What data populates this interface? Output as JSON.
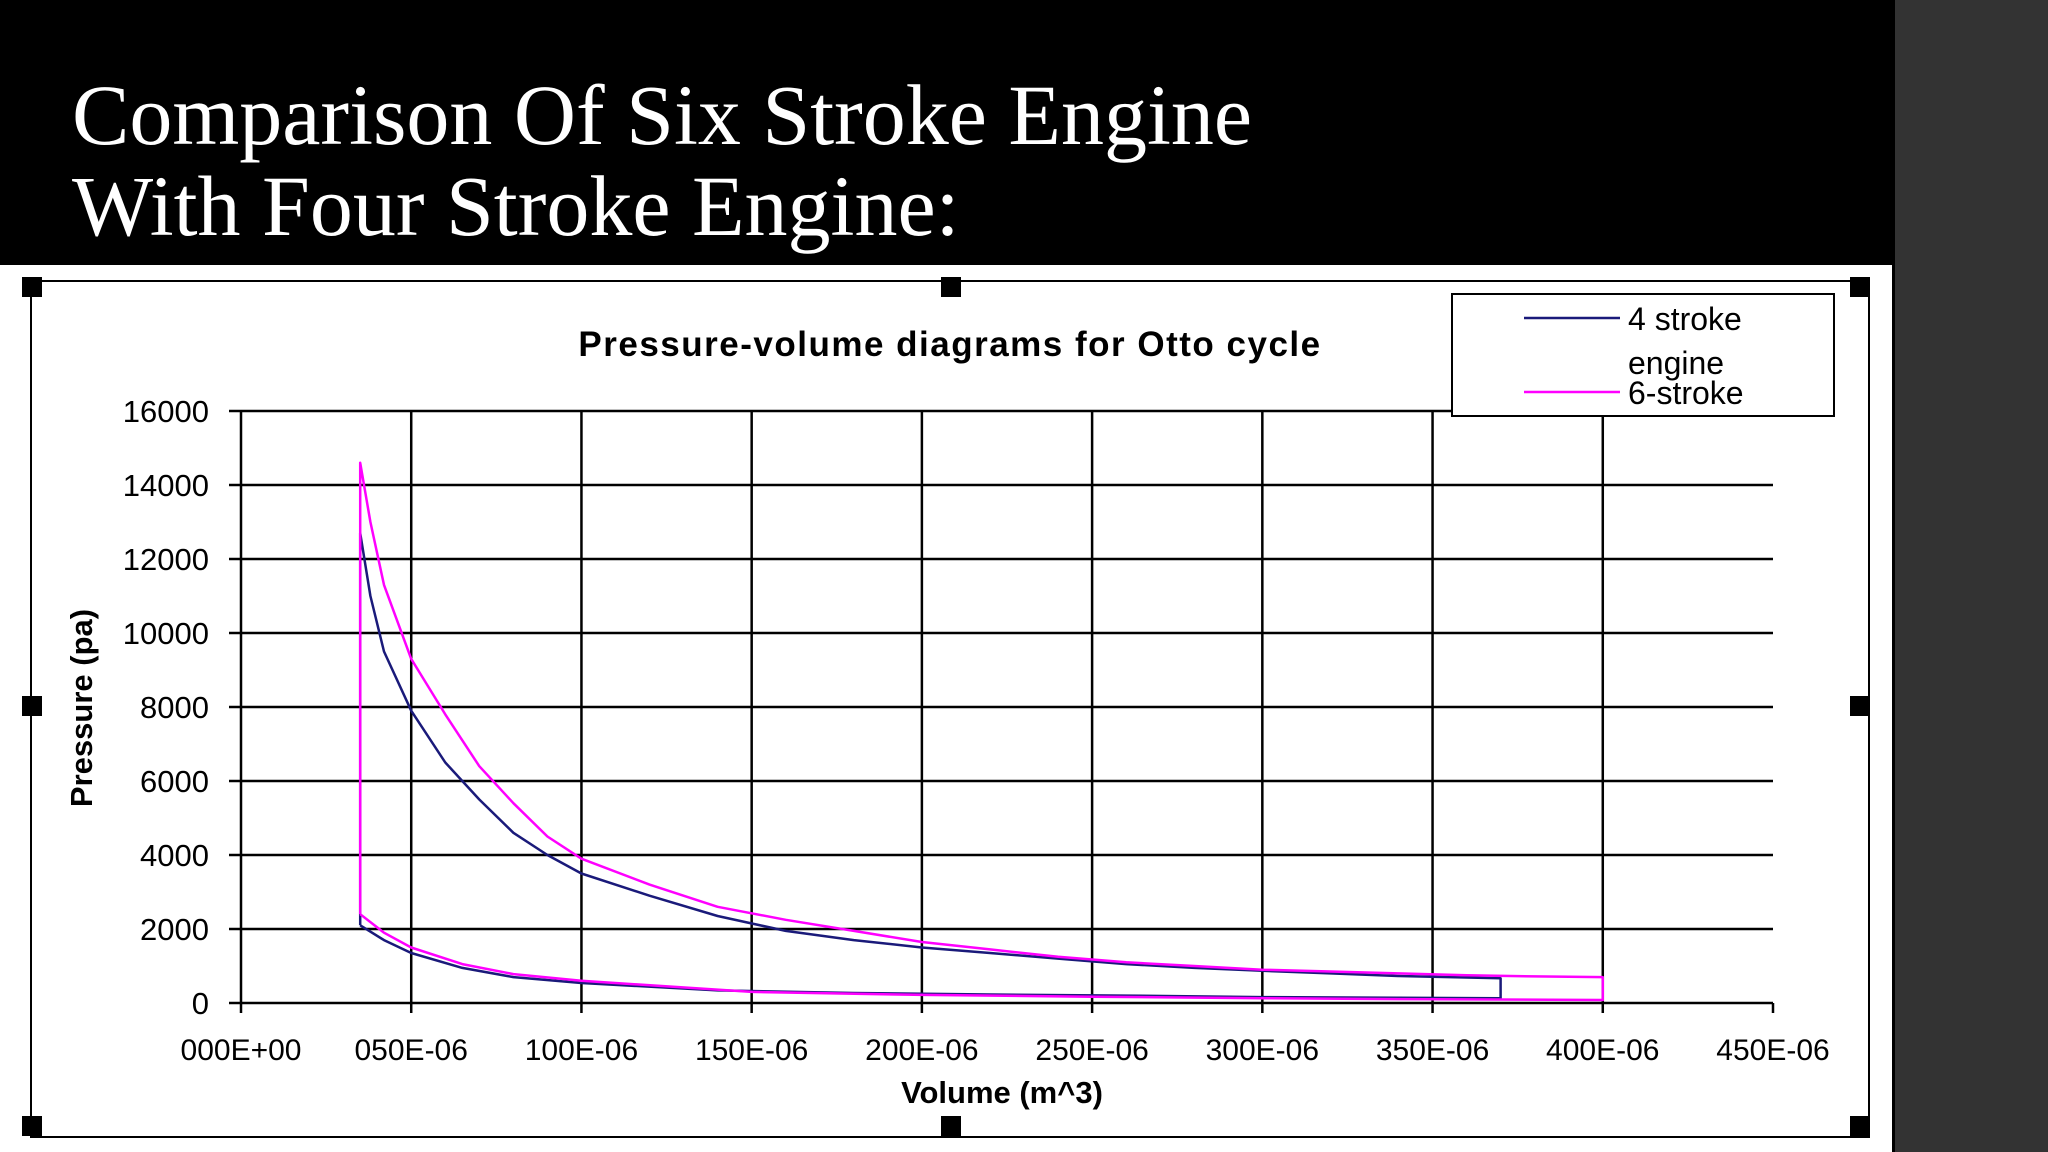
{
  "slide": {
    "title_line1": "Comparison Of Six Stroke Engine",
    "title_line2": "With Four Stroke Engine:"
  },
  "colors": {
    "four_stroke": "#1a1a7a",
    "six_stroke": "#ff00ff",
    "background": "#000000",
    "side_panel": "#333333"
  },
  "chart_data": {
    "type": "line",
    "title": "Pressure-volume diagrams for Otto cycle",
    "xlabel": "Volume (m^3)",
    "ylabel": "Pressure (pa)",
    "xlim": [
      0,
      0.00045
    ],
    "ylim": [
      0,
      16000
    ],
    "x_tick_values": [
      0,
      5e-05,
      0.0001,
      0.00015,
      0.0002,
      0.00025,
      0.0003,
      0.00035,
      0.0004,
      0.00045
    ],
    "x_tick_labels": [
      "000E+00",
      "050E-06",
      "100E-06",
      "150E-06",
      "200E-06",
      "250E-06",
      "300E-06",
      "350E-06",
      "400E-06",
      "450E-06"
    ],
    "y_tick_values": [
      0,
      2000,
      4000,
      6000,
      8000,
      10000,
      12000,
      14000,
      16000
    ],
    "y_tick_labels": [
      "0",
      "2000",
      "4000",
      "6000",
      "8000",
      "10000",
      "12000",
      "14000",
      "16000"
    ],
    "grid": true,
    "legend_position": "top-right",
    "series": [
      {
        "name": "4 stroke engine",
        "color": "#1a1a7a",
        "points": [
          [
            3.5e-05,
            2100
          ],
          [
            3.5e-05,
            12700
          ],
          [
            3.8e-05,
            11000
          ],
          [
            4.2e-05,
            9500
          ],
          [
            5e-05,
            7900
          ],
          [
            6e-05,
            6500
          ],
          [
            7e-05,
            5500
          ],
          [
            8e-05,
            4600
          ],
          [
            9e-05,
            4000
          ],
          [
            0.0001,
            3500
          ],
          [
            0.00012,
            2900
          ],
          [
            0.00014,
            2350
          ],
          [
            0.00016,
            1950
          ],
          [
            0.00018,
            1700
          ],
          [
            0.0002,
            1500
          ],
          [
            0.00022,
            1350
          ],
          [
            0.00024,
            1200
          ],
          [
            0.00026,
            1050
          ],
          [
            0.00028,
            950
          ],
          [
            0.0003,
            870
          ],
          [
            0.00032,
            800
          ],
          [
            0.00034,
            730
          ],
          [
            0.00036,
            690
          ],
          [
            0.00037,
            670
          ],
          [
            0.00037,
            130
          ],
          [
            0.00034,
            140
          ],
          [
            0.0003,
            160
          ],
          [
            0.00026,
            200
          ],
          [
            0.00022,
            230
          ],
          [
            0.00018,
            270
          ],
          [
            0.00014,
            340
          ],
          [
            0.0001,
            540
          ],
          [
            8e-05,
            700
          ],
          [
            6.5e-05,
            950
          ],
          [
            5e-05,
            1350
          ],
          [
            4.2e-05,
            1700
          ],
          [
            3.5e-05,
            2100
          ]
        ]
      },
      {
        "name": "6-stroke",
        "color": "#ff00ff",
        "points": [
          [
            3.5e-05,
            2400
          ],
          [
            3.5e-05,
            14600
          ],
          [
            3.8e-05,
            13000
          ],
          [
            4.2e-05,
            11300
          ],
          [
            5e-05,
            9300
          ],
          [
            6e-05,
            7800
          ],
          [
            7e-05,
            6400
          ],
          [
            8e-05,
            5400
          ],
          [
            9e-05,
            4500
          ],
          [
            0.0001,
            3900
          ],
          [
            0.00012,
            3200
          ],
          [
            0.00014,
            2600
          ],
          [
            0.00016,
            2250
          ],
          [
            0.00018,
            1950
          ],
          [
            0.0002,
            1650
          ],
          [
            0.00022,
            1450
          ],
          [
            0.00024,
            1250
          ],
          [
            0.00026,
            1100
          ],
          [
            0.00028,
            1000
          ],
          [
            0.0003,
            900
          ],
          [
            0.00032,
            850
          ],
          [
            0.00034,
            800
          ],
          [
            0.00036,
            750
          ],
          [
            0.00038,
            720
          ],
          [
            0.0004,
            700
          ],
          [
            0.0004,
            80
          ],
          [
            0.00035,
            100
          ],
          [
            0.0003,
            130
          ],
          [
            0.00025,
            170
          ],
          [
            0.0002,
            220
          ],
          [
            0.00015,
            300
          ],
          [
            0.0001,
            600
          ],
          [
            8e-05,
            780
          ],
          [
            6.5e-05,
            1050
          ],
          [
            5e-05,
            1500
          ],
          [
            4.2e-05,
            1900
          ],
          [
            3.5e-05,
            2400
          ]
        ]
      }
    ]
  }
}
